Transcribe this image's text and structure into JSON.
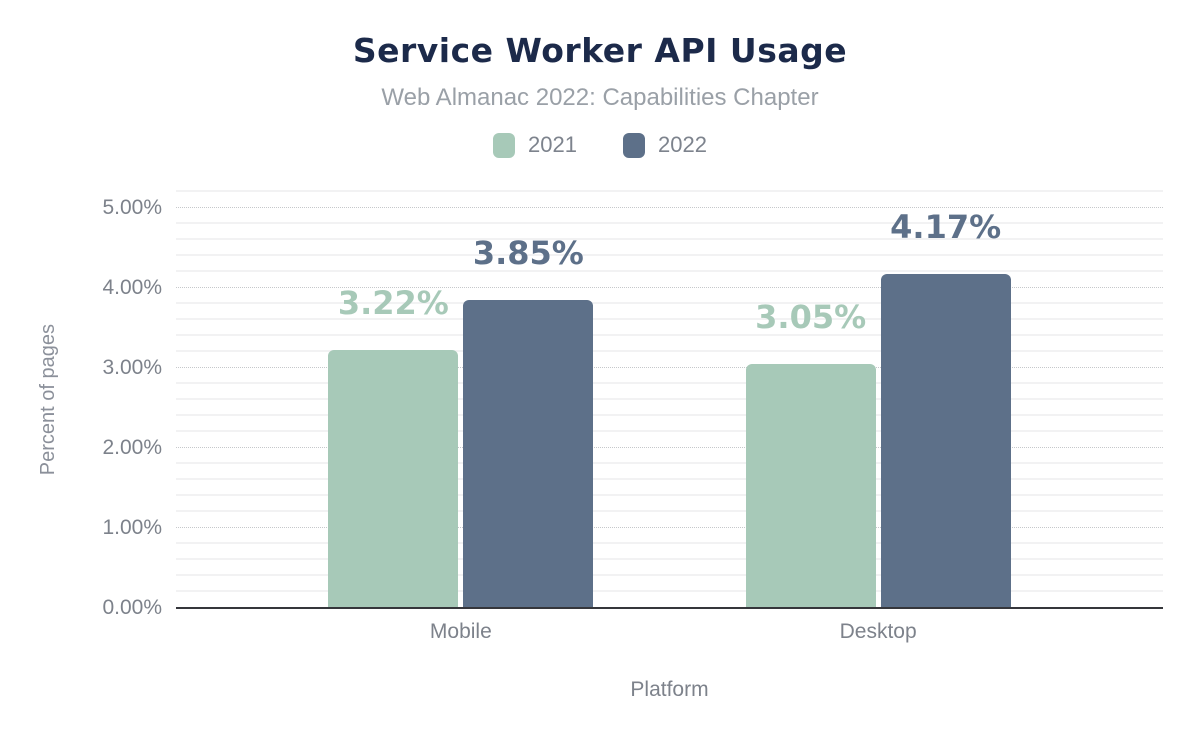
{
  "chart_data": {
    "type": "bar",
    "title": "Service Worker API Usage",
    "subtitle": "Web Almanac 2022: Capabilities Chapter",
    "xlabel": "Platform",
    "ylabel": "Percent of pages",
    "categories": [
      "Mobile",
      "Desktop"
    ],
    "series": [
      {
        "name": "2021",
        "color": "#a7c9b8",
        "values": [
          3.22,
          3.05
        ],
        "data_labels": [
          "3.22%",
          "3.05%"
        ]
      },
      {
        "name": "2022",
        "color": "#5d7089",
        "values": [
          3.85,
          4.17
        ],
        "data_labels": [
          "3.85%",
          "4.17%"
        ]
      }
    ],
    "ylim": [
      0,
      5
    ],
    "ytick_step": 1,
    "minor_tick_step": 0.2,
    "ytick_labels": [
      "0.00%",
      "1.00%",
      "2.00%",
      "3.00%",
      "4.00%",
      "5.00%"
    ],
    "grid": "horizontal-major-dotted-with-minor",
    "legend_position": "top"
  },
  "colors": {
    "title_text": "#1c2a4a",
    "subtitle_text": "#9aa0a7",
    "axis_tick_text": "#7d828b",
    "axis_title_text": "#8b909a",
    "legend_text": "#7d838d",
    "major_gridline": "#c6c8cb",
    "minor_gridline": "#f2f2f3",
    "baseline": "#35363b",
    "background": "#ffffff",
    "series_2021": "#a7c9b8",
    "series_2022": "#5d7089"
  }
}
